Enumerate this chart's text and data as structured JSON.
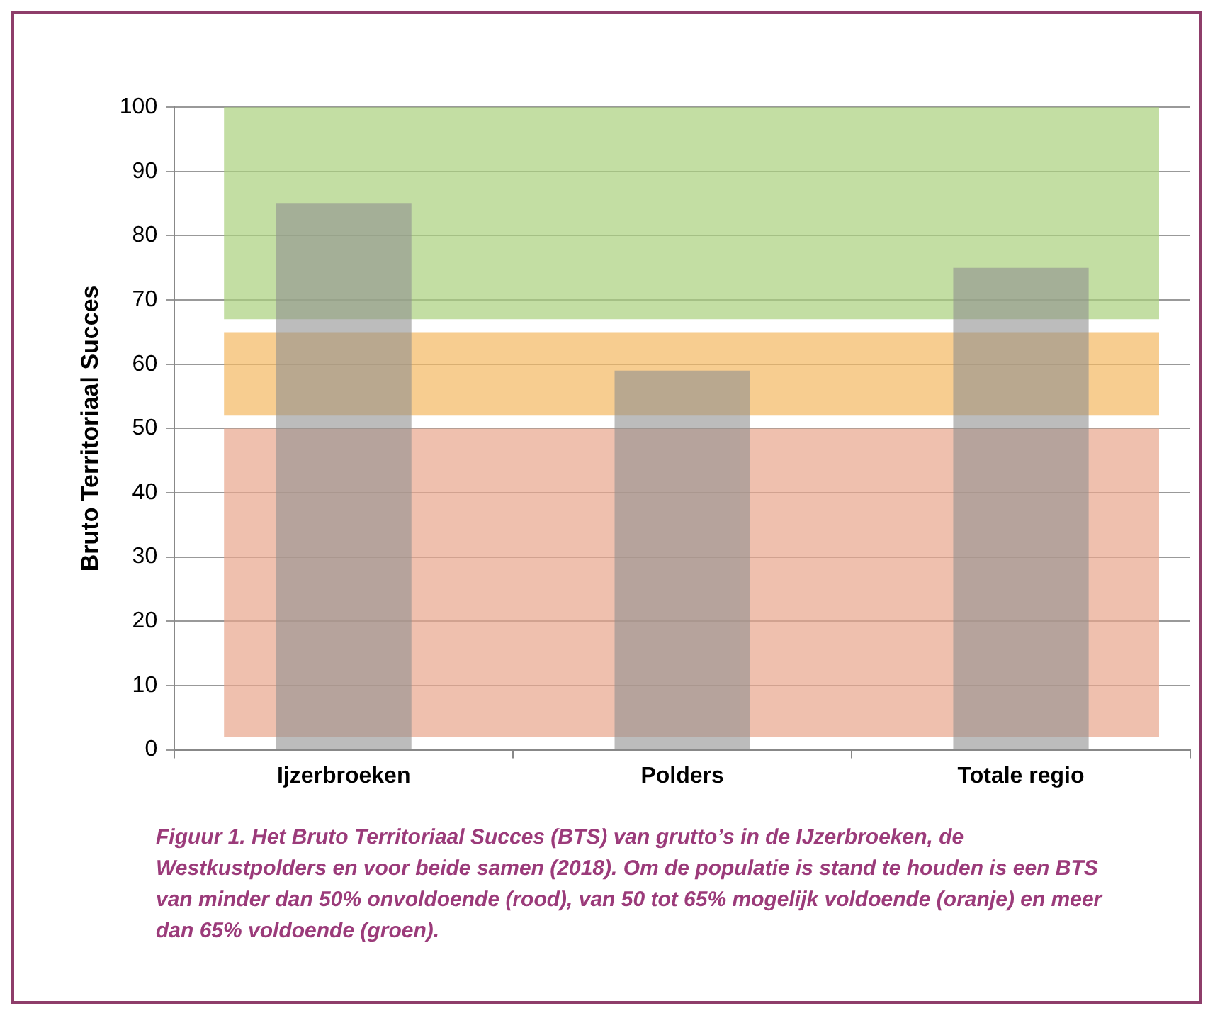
{
  "chart_data": {
    "type": "bar",
    "ylabel": "Bruto Territoriaal Succes",
    "categories": [
      "Ijzerbroeken",
      "Polders",
      "Totale regio"
    ],
    "values": [
      85,
      59,
      75
    ],
    "color": "#8f8f8f",
    "ylim": [
      0,
      100
    ],
    "yticks": [
      0,
      10,
      20,
      30,
      40,
      50,
      60,
      70,
      80,
      90,
      100
    ],
    "grid": "y",
    "bands": [
      {
        "axis": "y",
        "from": 2,
        "to": 50,
        "color": "#e8a58c"
      },
      {
        "axis": "y",
        "from": 52,
        "to": 65,
        "color": "#f4b861"
      },
      {
        "axis": "y",
        "from": 67,
        "to": 100,
        "color": "#a9d07c"
      }
    ],
    "annotations": [
      "Figuur 1. Het Bruto Territoriaal Succes (BTS) van grutto’s in de IJzerbroeken, de Westkustpolders en voor beide samen (2018). Om de populatie is stand te houden is een BTS van minder dan 50%  onvoldoende (rood), van 50 tot 65% mogelijk voldoende (oranje) en meer dan 65% voldoende (groen)."
    ]
  }
}
